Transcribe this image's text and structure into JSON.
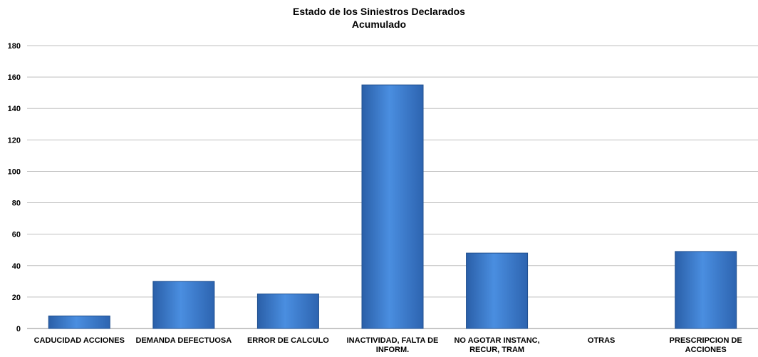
{
  "chart_data": {
    "type": "bar",
    "title": "Estado de los Siniestros Declarados",
    "subtitle": "Acumulado",
    "xlabel": "",
    "ylabel": "",
    "ylim": [
      0,
      180
    ],
    "yticks": [
      0,
      20,
      40,
      60,
      80,
      100,
      120,
      140,
      160,
      180
    ],
    "grid": true,
    "legend": "none",
    "bar_color": "#3b7ad0",
    "categories": [
      [
        "CADUCIDAD ACCIONES"
      ],
      [
        "DEMANDA DEFECTUOSA"
      ],
      [
        "ERROR DE CALCULO"
      ],
      [
        "INACTIVIDAD, FALTA DE",
        "INFORM."
      ],
      [
        "NO AGOTAR INSTANC,",
        "RECUR, TRAM"
      ],
      [
        "OTRAS"
      ],
      [
        "PRESCRIPCION DE",
        "ACCIONES"
      ]
    ],
    "values": [
      8,
      30,
      22,
      155,
      48,
      0,
      49
    ]
  }
}
